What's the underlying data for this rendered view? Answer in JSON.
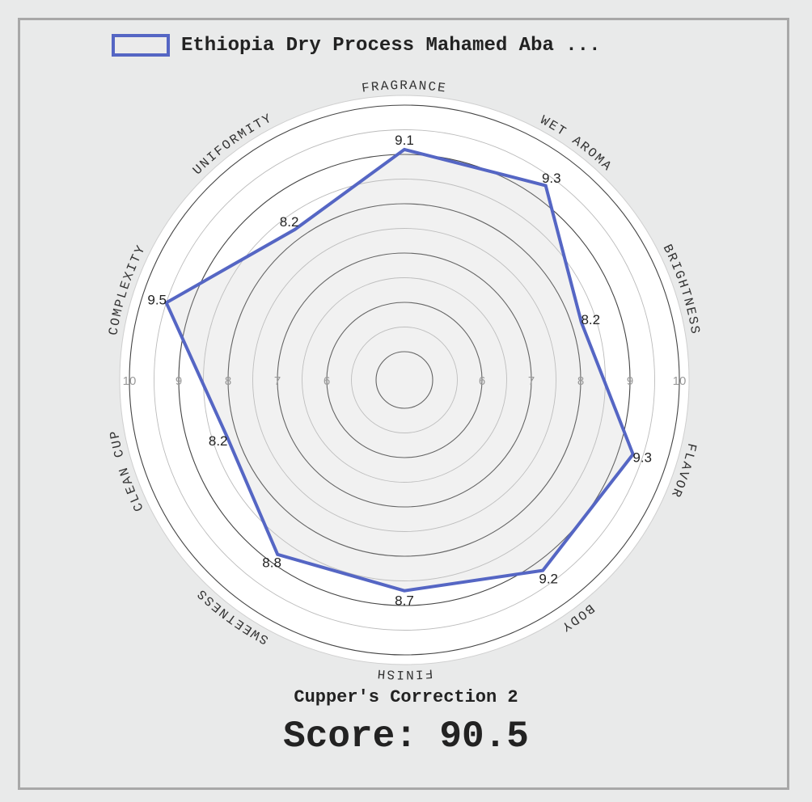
{
  "chart_data": {
    "type": "radar",
    "categories": [
      "FRAGRANCE",
      "WET AROMA",
      "BRIGHTNESS",
      "FLAVOR",
      "BODY",
      "FINISH",
      "SWEETNESS",
      "CLEAN CUP",
      "COMPLEXITY",
      "UNIFORMITY"
    ],
    "series": [
      {
        "name": "Ethiopia Dry Process Mahamed Aba ...",
        "values": [
          9.1,
          9.3,
          8.2,
          9.3,
          9.2,
          8.7,
          8.8,
          8.2,
          9.5,
          8.2
        ],
        "color": "#5566c4"
      }
    ],
    "rlim": [
      5,
      10
    ],
    "tick_labels": [
      "6",
      "7",
      "8",
      "9",
      "10"
    ],
    "grid": true,
    "legend_position": "top"
  },
  "footer": {
    "correction": "Cupper's Correction 2",
    "score": "Score: 90.5"
  },
  "colors": {
    "series_stroke": "#5566c4",
    "fill": "#ececec",
    "background": "#e9eaea"
  }
}
